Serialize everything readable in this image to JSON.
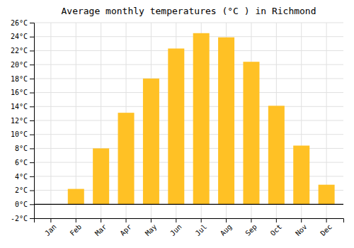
{
  "chart_data": {
    "type": "bar",
    "title": "Average monthly temperatures (°C ) in Richmond",
    "categories": [
      "Jan",
      "Feb",
      "Mar",
      "Apr",
      "May",
      "Jun",
      "Jul",
      "Aug",
      "Sep",
      "Oct",
      "Nov",
      "Dec"
    ],
    "values": [
      0.0,
      2.2,
      8.0,
      13.1,
      18.0,
      22.3,
      24.5,
      23.9,
      20.4,
      14.1,
      8.4,
      2.8
    ],
    "color": "#FFC125",
    "ylim": [
      -2,
      26
    ],
    "yticks": [
      {
        "value": -2,
        "label": "-2°C"
      },
      {
        "value": 0,
        "label": "0°C"
      },
      {
        "value": 2,
        "label": "2°C"
      },
      {
        "value": 4,
        "label": "4°C"
      },
      {
        "value": 6,
        "label": "6°C"
      },
      {
        "value": 8,
        "label": "8°C"
      },
      {
        "value": 10,
        "label": "10°C"
      },
      {
        "value": 12,
        "label": "12°C"
      },
      {
        "value": 14,
        "label": "14°C"
      },
      {
        "value": 16,
        "label": "16°C"
      },
      {
        "value": 18,
        "label": "18°C"
      },
      {
        "value": 20,
        "label": "20°C"
      },
      {
        "value": 22,
        "label": "22°C"
      },
      {
        "value": 24,
        "label": "24°C"
      },
      {
        "value": 26,
        "label": "26°C"
      }
    ],
    "grid": true
  }
}
